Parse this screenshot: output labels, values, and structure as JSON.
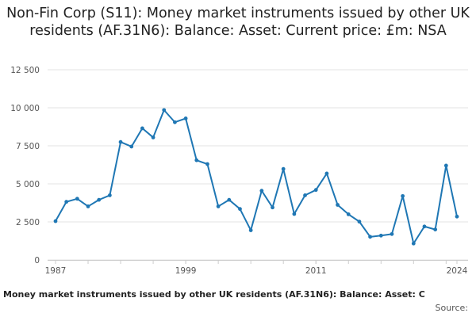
{
  "chart_data": {
    "type": "line",
    "title": "Non-Fin Corp (S11): Money market instruments issued by other UK residents (AF.31N6): Balance: Asset: Current price: £m: NSA",
    "footer_caption": "Money market instruments issued by other UK residents (AF.31N6): Balance: Asset: C",
    "source_label": "Source:",
    "xlabel": "",
    "ylabel": "",
    "xlim": [
      1987,
      2024
    ],
    "ylim": [
      0,
      12500
    ],
    "x_tick_labels": [
      "1987",
      "1999",
      "2011",
      "2024"
    ],
    "y_tick_labels": [
      "0",
      "2 500",
      "5 000",
      "7 500",
      "10 000",
      "12 500"
    ],
    "grid": true,
    "line_color": "#1f77b4",
    "x": [
      1987,
      1988,
      1989,
      1990,
      1991,
      1992,
      1993,
      1994,
      1995,
      1996,
      1997,
      1998,
      1999,
      2000,
      2001,
      2002,
      2003,
      2004,
      2005,
      2006,
      2007,
      2008,
      2009,
      2010,
      2011,
      2012,
      2013,
      2014,
      2015,
      2016,
      2017,
      2018,
      2019,
      2020,
      2021,
      2022,
      2023,
      2024
    ],
    "values": [
      2550,
      3820,
      4020,
      3520,
      3950,
      4250,
      7750,
      7450,
      8650,
      8050,
      9850,
      9050,
      9300,
      6550,
      6300,
      3520,
      3950,
      3350,
      1950,
      4550,
      3450,
      5980,
      3020,
      4250,
      4600,
      5680,
      3620,
      3000,
      2520,
      1520,
      1600,
      1700,
      4200,
      1080,
      2200,
      2000,
      6200,
      2850
    ]
  }
}
